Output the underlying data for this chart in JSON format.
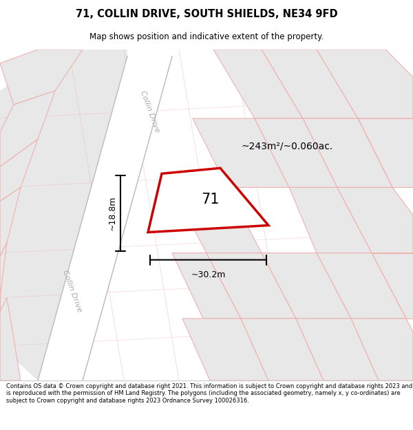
{
  "title_line1": "71, COLLIN DRIVE, SOUTH SHIELDS, NE34 9FD",
  "title_line2": "Map shows position and indicative extent of the property.",
  "footer_text": "Contains OS data © Crown copyright and database right 2021. This information is subject to Crown copyright and database rights 2023 and is reproduced with the permission of HM Land Registry. The polygons (including the associated geometry, namely x, y co-ordinates) are subject to Crown copyright and database rights 2023 Ordnance Survey 100026316.",
  "area_label": "~243m²/~0.060ac.",
  "width_label": "~30.2m",
  "height_label": "~18.8m",
  "number_label": "71",
  "road_label_upper": "Collin Drive",
  "road_label_lower": "Collin Drive",
  "plot_edge_color": "#cc0000",
  "pink_line_color": "#f0b0b0",
  "block_face_color": "#e8e8e8",
  "road_face_color": "#ffffff",
  "road_edge_color": "#c0c0c0"
}
